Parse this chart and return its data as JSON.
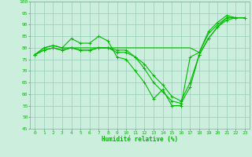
{
  "xlabel": "Humidité relative (%)",
  "background_color": "#cceedd",
  "grid_color": "#99ccbb",
  "line_color": "#00bb00",
  "ylim": [
    45,
    100
  ],
  "yticks": [
    45,
    50,
    55,
    60,
    65,
    70,
    75,
    80,
    85,
    90,
    95,
    100
  ],
  "xlim": [
    -0.5,
    23.5
  ],
  "xticks": [
    0,
    1,
    2,
    3,
    4,
    5,
    6,
    7,
    8,
    9,
    10,
    11,
    12,
    13,
    14,
    15,
    16,
    17,
    18,
    19,
    20,
    21,
    22,
    23
  ],
  "line1": [
    77,
    80,
    81,
    80,
    84,
    82,
    82,
    85,
    83,
    76,
    75,
    70,
    65,
    58,
    62,
    55,
    55,
    76,
    78,
    87,
    91,
    94,
    93,
    93
  ],
  "line2": [
    77,
    80,
    81,
    80,
    80,
    80,
    80,
    80,
    80,
    80,
    80,
    80,
    80,
    80,
    80,
    80,
    80,
    80,
    78,
    86,
    90,
    93,
    93,
    93
  ],
  "line3": [
    77,
    79,
    80,
    79,
    80,
    79,
    79,
    80,
    80,
    78,
    78,
    76,
    73,
    68,
    64,
    59,
    57,
    65,
    77,
    84,
    89,
    92,
    93,
    93
  ],
  "line4": [
    77,
    79,
    80,
    79,
    80,
    79,
    79,
    80,
    80,
    79,
    79,
    76,
    71,
    65,
    61,
    57,
    56,
    63,
    77,
    84,
    89,
    93,
    93,
    93
  ]
}
